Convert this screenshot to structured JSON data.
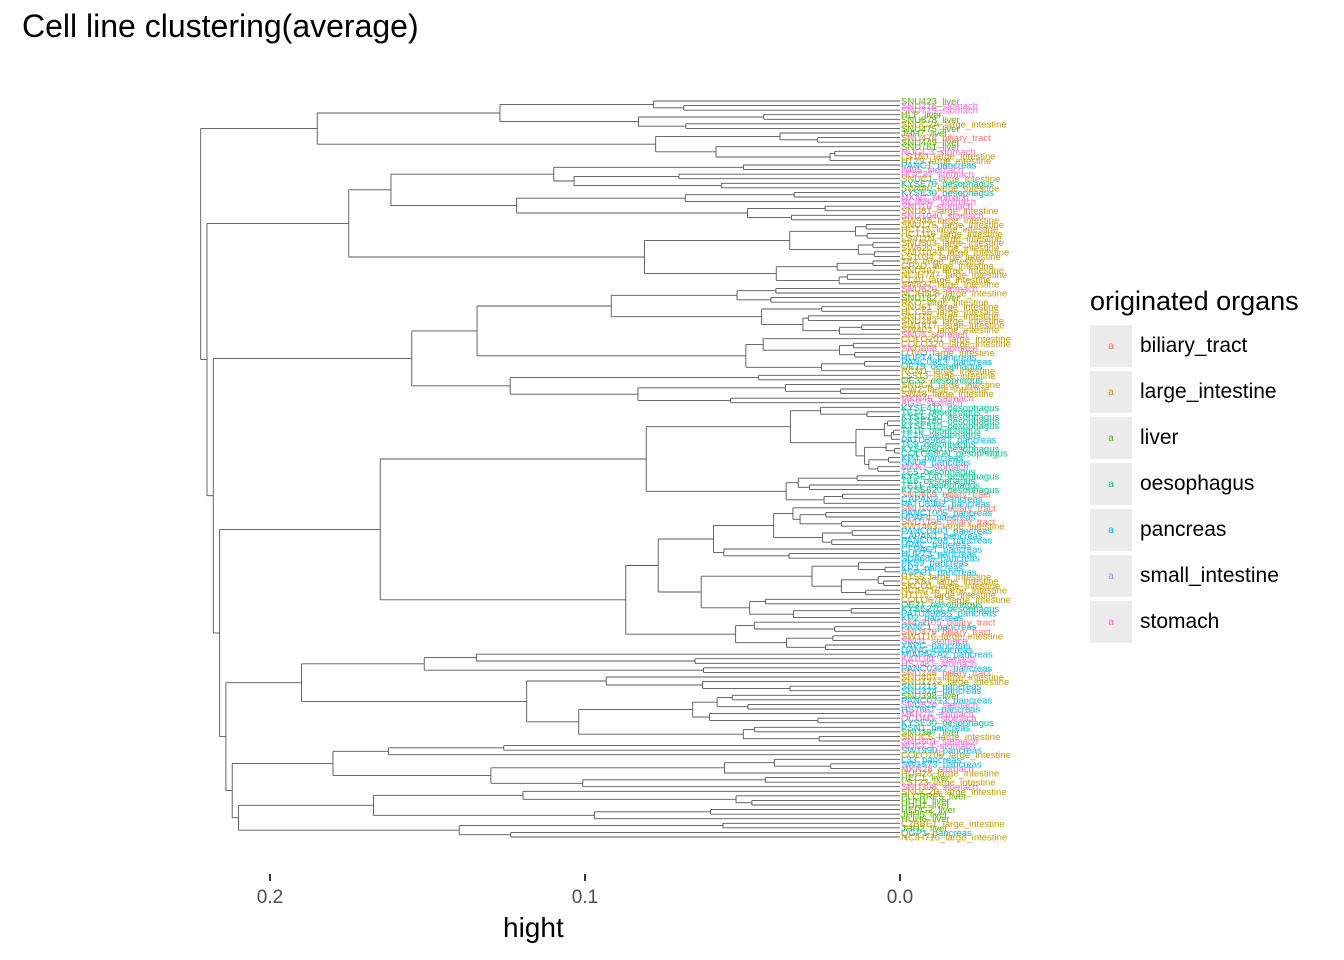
{
  "chart_data": {
    "type": "dendrogram",
    "title": "Cell line clustering(average)",
    "xlabel": "hight",
    "ylabel": "",
    "orientation": "horizontal",
    "x_reversed": true,
    "xlim": [
      0.232,
      -0.038
    ],
    "x_ticks": [
      0.2,
      0.1,
      0.0
    ],
    "x_tick_labels": [
      "0.2",
      "0.1",
      "0.0"
    ],
    "grid": false,
    "legend": {
      "title": "originated organs",
      "placement": "right",
      "key_glyph": "a",
      "entries": [
        {
          "name": "biliary_tract",
          "color": "#F8766D"
        },
        {
          "name": "large_intestine",
          "color": "#C49A00"
        },
        {
          "name": "liver",
          "color": "#53B400"
        },
        {
          "name": "oesophagus",
          "color": "#00C094"
        },
        {
          "name": "pancreas",
          "color": "#00B6EB"
        },
        {
          "name": "small_intestine",
          "color": "#A58AFF"
        },
        {
          "name": "stomach",
          "color": "#FB61D7"
        }
      ]
    },
    "root_height": 0.232,
    "top_level_merges": [
      0.232,
      0.23,
      0.21,
      0.208,
      0.2,
      0.19,
      0.185,
      0.18
    ],
    "leaves": [
      {
        "label": "SNU423_liver",
        "organ": "liver"
      },
      {
        "label": "SNU216_stomach",
        "organ": "stomach"
      },
      {
        "label": "SNU719_stomach",
        "organ": "stomach"
      },
      {
        "label": "HLF_liver",
        "organ": "liver"
      },
      {
        "label": "SNU878_liver",
        "organ": "liver"
      },
      {
        "label": "SNUC2A_large_intestine",
        "organ": "large_intestine"
      },
      {
        "label": "SNU475_liver",
        "organ": "liver"
      },
      {
        "label": "JHH7_liver",
        "organ": "liver"
      },
      {
        "label": "SNU478_biliary_tract",
        "organ": "biliary_tract"
      },
      {
        "label": "SNU449_liver",
        "organ": "liver"
      },
      {
        "label": "SNU761_liver",
        "organ": "liver"
      },
      {
        "label": "NUGC3_stomach",
        "organ": "stomach"
      },
      {
        "label": "LS180_large_intestine",
        "organ": "large_intestine"
      },
      {
        "label": "HT29_large_intestine",
        "organ": "large_intestine"
      },
      {
        "label": "PANC1_pancreas",
        "organ": "pancreas"
      },
      {
        "label": "IM95_stomach",
        "organ": "stomach"
      },
      {
        "label": "HGC27_stomach",
        "organ": "stomach"
      },
      {
        "label": "SNUC1_large_intestine",
        "organ": "large_intestine"
      },
      {
        "label": "KYSE70_oesophagus",
        "organ": "oesophagus"
      },
      {
        "label": "SW480_large_intestine",
        "organ": "large_intestine"
      },
      {
        "label": "KYSE30_oesophagus",
        "organ": "oesophagus"
      },
      {
        "label": "MKN7_stomach",
        "organ": "stomach"
      },
      {
        "label": "NCIN87_stomach",
        "organ": "stomach"
      },
      {
        "label": "SNU16_stomach",
        "organ": "stomach"
      },
      {
        "label": "SNU81_large_intestine",
        "organ": "large_intestine"
      },
      {
        "label": "SNU1040_stomach",
        "organ": "stomach"
      },
      {
        "label": "SW948_large_intestine",
        "organ": "large_intestine"
      },
      {
        "label": "SNU175_large_intestine",
        "organ": "large_intestine"
      },
      {
        "label": "HCT15_large_intestine",
        "organ": "large_intestine"
      },
      {
        "label": "HCT116_large_intestine",
        "organ": "large_intestine"
      },
      {
        "label": "LS411N_large_intestine",
        "organ": "large_intestine"
      },
      {
        "label": "SNU503_large_intestine",
        "organ": "large_intestine"
      },
      {
        "label": "SW620_large_intestine",
        "organ": "large_intestine"
      },
      {
        "label": "SNU1033_large_intestine",
        "organ": "large_intestine"
      },
      {
        "label": "LS1034_large_intestine",
        "organ": "large_intestine"
      },
      {
        "label": "T84_large_intestine",
        "organ": "large_intestine"
      },
      {
        "label": "GP2D_large_intestine",
        "organ": "large_intestine"
      },
      {
        "label": "SNU407_large_intestine",
        "organ": "large_intestine"
      },
      {
        "label": "NCIH747_large_intestine",
        "organ": "large_intestine"
      },
      {
        "label": "CL40_large_intestine",
        "organ": "large_intestine"
      },
      {
        "label": "SW837_large_intestine",
        "organ": "large_intestine"
      },
      {
        "label": "SNU620_stomach",
        "organ": "stomach"
      },
      {
        "label": "NCIH508_large_intestine",
        "organ": "large_intestine"
      },
      {
        "label": "SNU182_liver",
        "organ": "liver"
      },
      {
        "label": "RKO_large_intestine",
        "organ": "large_intestine"
      },
      {
        "label": "SNU61_large_intestine",
        "organ": "large_intestine"
      },
      {
        "label": "HCC56_large_intestine",
        "organ": "large_intestine"
      },
      {
        "label": "SNU70_large_intestine",
        "organ": "large_intestine"
      },
      {
        "label": "SNU283_large_intestine",
        "organ": "large_intestine"
      },
      {
        "label": "SW1417_large_intestine",
        "organ": "large_intestine"
      },
      {
        "label": "SW403_large_intestine",
        "organ": "large_intestine"
      },
      {
        "label": "SNU5_stomach",
        "organ": "stomach"
      },
      {
        "label": "COLO201_large_intestine",
        "organ": "large_intestine"
      },
      {
        "label": "COLO320_large_intestine",
        "organ": "large_intestine"
      },
      {
        "label": "SNU668_stomach",
        "organ": "stomach"
      },
      {
        "label": "LOVO_large_intestine",
        "organ": "large_intestine"
      },
      {
        "label": "HUPT4_pancreas",
        "organ": "pancreas"
      },
      {
        "label": "PANC0813_pancreas",
        "organ": "pancreas"
      },
      {
        "label": "OE19_oesophagus",
        "organ": "oesophagus"
      },
      {
        "label": "RCM1_large_intestine",
        "organ": "large_intestine"
      },
      {
        "label": "LS513_large_intestine",
        "organ": "large_intestine"
      },
      {
        "label": "OE33_oesophagus",
        "organ": "oesophagus"
      },
      {
        "label": "SNUC4_large_intestine",
        "organ": "large_intestine"
      },
      {
        "label": "CW2_large_intestine",
        "organ": "large_intestine"
      },
      {
        "label": "SW48_large_intestine",
        "organ": "large_intestine"
      },
      {
        "label": "MKN45_stomach",
        "organ": "stomach"
      },
      {
        "label": "AGS_stomach",
        "organ": "stomach"
      },
      {
        "label": "KYSE410_oesophagus",
        "organ": "oesophagus"
      },
      {
        "label": "TE14_oesophagus",
        "organ": "oesophagus"
      },
      {
        "label": "KYSE150_oesophagus",
        "organ": "oesophagus"
      },
      {
        "label": "KYSE180_oesophagus",
        "organ": "oesophagus"
      },
      {
        "label": "KYSE510_oesophagus",
        "organ": "oesophagus"
      },
      {
        "label": "TE10_oesophagus",
        "organ": "oesophagus"
      },
      {
        "label": "TE15_oesophagus",
        "organ": "oesophagus"
      },
      {
        "label": "PATU8988T_pancreas",
        "organ": "pancreas"
      },
      {
        "label": "TE9_oesophagus",
        "organ": "oesophagus"
      },
      {
        "label": "KYSE450_oesophagus",
        "organ": "oesophagus"
      },
      {
        "label": "COLO680N_oesophagus",
        "organ": "oesophagus"
      },
      {
        "label": "KP4_pancreas",
        "organ": "pancreas"
      },
      {
        "label": "SNU8_pancreas",
        "organ": "pancreas"
      },
      {
        "label": "MKN1_stomach",
        "organ": "stomach"
      },
      {
        "label": "TE5_oesophagus",
        "organ": "oesophagus"
      },
      {
        "label": "KYSE140_oesophagus",
        "organ": "oesophagus"
      },
      {
        "label": "TE6_oesophagus",
        "organ": "oesophagus"
      },
      {
        "label": "TE11_oesophagus",
        "organ": "oesophagus"
      },
      {
        "label": "KYSE520_oesophagus",
        "organ": "oesophagus"
      },
      {
        "label": "SNU869_biliary_tract",
        "organ": "biliary_tract"
      },
      {
        "label": "CAPAN2_pancreas",
        "organ": "pancreas"
      },
      {
        "label": "PATU8902_pancreas",
        "organ": "pancreas"
      },
      {
        "label": "SNU1079_biliary_tract",
        "organ": "biliary_tract"
      },
      {
        "label": "PANC1005_pancreas",
        "organ": "pancreas"
      },
      {
        "label": "HPAFII_pancreas",
        "organ": "pancreas"
      },
      {
        "label": "SNU1196_biliary_tract",
        "organ": "biliary_tract"
      },
      {
        "label": "SW1463_large_intestine",
        "organ": "large_intestine"
      },
      {
        "label": "PANC0403_pancreas",
        "organ": "pancreas"
      },
      {
        "label": "CAPAN1_pancreas",
        "organ": "pancreas"
      },
      {
        "label": "PANC0203_pancreas",
        "organ": "pancreas"
      },
      {
        "label": "HPAC_pancreas",
        "organ": "pancreas"
      },
      {
        "label": "CFPAC1_pancreas",
        "organ": "pancreas"
      },
      {
        "label": "HUPT3_pancreas",
        "organ": "pancreas"
      },
      {
        "label": "SU8686_pancreas",
        "organ": "pancreas"
      },
      {
        "label": "PK59_pancreas",
        "organ": "pancreas"
      },
      {
        "label": "KP3_pancreas",
        "organ": "pancreas"
      },
      {
        "label": "ASPC1_pancreas",
        "organ": "pancreas"
      },
      {
        "label": "HT55_large_intestine",
        "organ": "large_intestine"
      },
      {
        "label": "CCK81_large_intestine",
        "organ": "large_intestine"
      },
      {
        "label": "SKCO1_large_intestine",
        "organ": "large_intestine"
      },
      {
        "label": "NCIH716_large_intestine",
        "organ": "large_intestine"
      },
      {
        "label": "HT115_large_intestine",
        "organ": "large_intestine"
      },
      {
        "label": "COLO678_large_intestine",
        "organ": "large_intestine"
      },
      {
        "label": "OE21_oesophagus",
        "organ": "oesophagus"
      },
      {
        "label": "KYSE270_oesophagus",
        "organ": "oesophagus"
      },
      {
        "label": "PATU8988S_pancreas",
        "organ": "pancreas"
      },
      {
        "label": "KP2_pancreas",
        "organ": "pancreas"
      },
      {
        "label": "SNU1105_biliary_tract",
        "organ": "biliary_tract"
      },
      {
        "label": "PANC1_pancreas",
        "organ": "pancreas"
      },
      {
        "label": "SNU479_biliary_tract",
        "organ": "biliary_tract"
      },
      {
        "label": "SW1116_large_intestine",
        "organ": "large_intestine"
      },
      {
        "label": "SNU1_stomach",
        "organ": "stomach"
      },
      {
        "label": "YAPC_pancreas",
        "organ": "pancreas"
      },
      {
        "label": "DANG_pancreas",
        "organ": "pancreas"
      },
      {
        "label": "MIAPACA2_pancreas",
        "organ": "pancreas"
      },
      {
        "label": "KATOIII_stomach",
        "organ": "stomach"
      },
      {
        "label": "HS746T_stomach",
        "organ": "stomach"
      },
      {
        "label": "PANC0327_pancreas",
        "organ": "pancreas"
      },
      {
        "label": "SNU245_biliary_tract",
        "organ": "biliary_tract"
      },
      {
        "label": "SNU407_large_intestine",
        "organ": "large_intestine"
      },
      {
        "label": "SNU1272_large_intestine",
        "organ": "large_intestine"
      },
      {
        "label": "SNU213_pancreas",
        "organ": "pancreas"
      },
      {
        "label": "SNU324_pancreas",
        "organ": "pancreas"
      },
      {
        "label": "SNU398_liver",
        "organ": "liver"
      },
      {
        "label": "PANC0213_pancreas",
        "organ": "pancreas"
      },
      {
        "label": "SNU520_stomach",
        "organ": "stomach"
      },
      {
        "label": "HS766T_pancreas",
        "organ": "pancreas"
      },
      {
        "label": "MKN74_stomach",
        "organ": "stomach"
      },
      {
        "label": "OCUM1_stomach",
        "organ": "stomach"
      },
      {
        "label": "KYSE30_oesophagus",
        "organ": "oesophagus"
      },
      {
        "label": "PSN1_pancreas",
        "organ": "pancreas"
      },
      {
        "label": "SNU387_liver",
        "organ": "liver"
      },
      {
        "label": "SNUC5_large_intestine",
        "organ": "large_intestine"
      },
      {
        "label": "SNU601_stomach",
        "organ": "stomach"
      },
      {
        "label": "NUGC4_stomach",
        "organ": "stomach"
      },
      {
        "label": "SW1990_pancreas",
        "organ": "pancreas"
      },
      {
        "label": "COLO205_large_intestine",
        "organ": "large_intestine"
      },
      {
        "label": "L33_pancreas",
        "organ": "pancreas"
      },
      {
        "label": "SW1573_pancreas",
        "organ": "pancreas"
      },
      {
        "label": "MKN28_stomach",
        "organ": "stomach"
      },
      {
        "label": "HUH28_large_intestine",
        "organ": "large_intestine"
      },
      {
        "label": "HEC1_liver",
        "organ": "liver"
      },
      {
        "label": "LS123_large_intestine",
        "organ": "large_intestine"
      },
      {
        "label": "SNU308_stomach",
        "organ": "stomach"
      },
      {
        "label": "SNUC2B_large_intestine",
        "organ": "large_intestine"
      },
      {
        "label": "PLCPRF5_liver",
        "organ": "liver"
      },
      {
        "label": "HUH1_liver",
        "organ": "liver"
      },
      {
        "label": "HUH7_liver",
        "organ": "liver"
      },
      {
        "label": "HEPG2_liver",
        "organ": "liver"
      },
      {
        "label": "JHH5_liver",
        "organ": "liver"
      },
      {
        "label": "HUH6_liver",
        "organ": "liver"
      },
      {
        "label": "C2BBE1_large_intestine",
        "organ": "large_intestine"
      },
      {
        "label": "JHH2_liver",
        "organ": "liver"
      },
      {
        "label": "QGP1_pancreas",
        "organ": "pancreas"
      },
      {
        "label": "NCIH716_large_intestine",
        "organ": "large_intestine"
      }
    ]
  }
}
